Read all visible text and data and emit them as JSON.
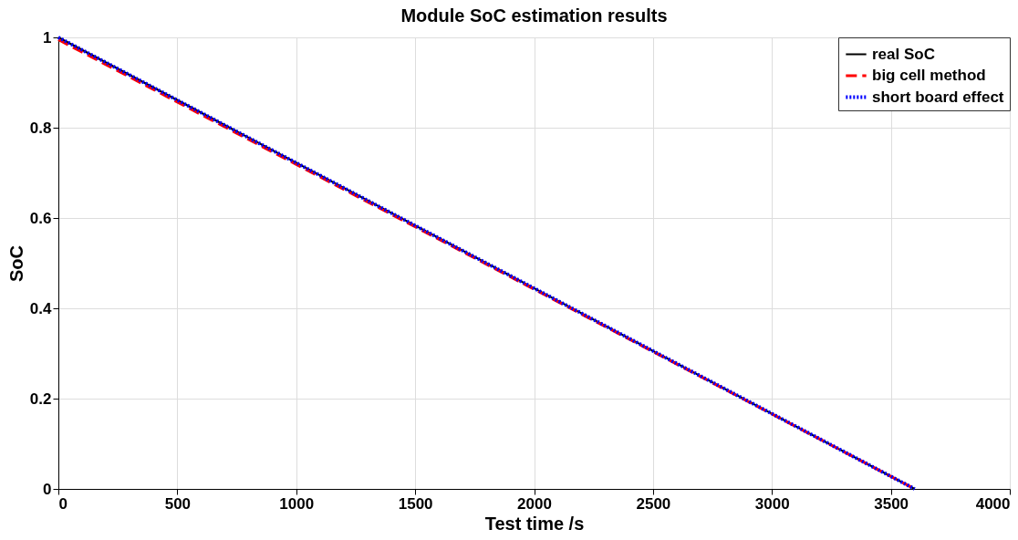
{
  "chart_data": {
    "type": "line",
    "title": "Module SoC estimation results",
    "xlabel": "Test time /s",
    "ylabel": "SoC",
    "x": [
      0,
      3600
    ],
    "series": [
      {
        "name": "real SoC",
        "color": "#000000",
        "line_style": "solid",
        "values": [
          1,
          0
        ]
      },
      {
        "name": "big cell method",
        "color": "#ff0000",
        "line_style": "dashed",
        "values": [
          0.995,
          0
        ]
      },
      {
        "name": "short board effect",
        "color": "#0000ff",
        "line_style": "dotted",
        "values": [
          1,
          0
        ]
      }
    ],
    "xlim": [
      0,
      4000
    ],
    "xticks": [
      0,
      500,
      1000,
      1500,
      2000,
      2500,
      3000,
      3500,
      4000
    ],
    "ylim": [
      0,
      1
    ],
    "yticks": [
      0,
      0.2,
      0.4,
      0.6,
      0.8,
      1
    ],
    "grid": true,
    "legend": "top right",
    "marker": "none"
  }
}
